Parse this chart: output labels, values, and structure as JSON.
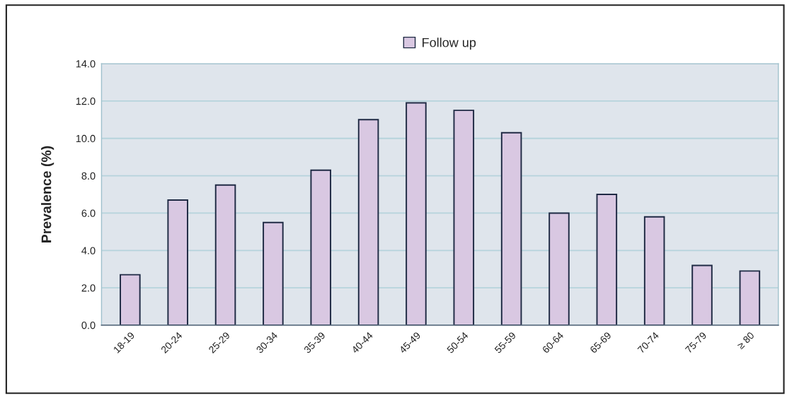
{
  "chart_data": {
    "type": "bar",
    "ylabel": "Prevalence (%)",
    "categories": [
      "18-19",
      "20-24",
      "25-29",
      "30-34",
      "35-39",
      "40-44",
      "45-49",
      "50-54",
      "55-59",
      "60-64",
      "65-69",
      "70-74",
      "75-79",
      "≥ 80"
    ],
    "series": [
      {
        "name": "Follow up",
        "color": "#d9c8e2",
        "values": [
          2.7,
          6.7,
          7.5,
          5.5,
          8.3,
          11.0,
          11.9,
          11.5,
          10.3,
          6.0,
          7.0,
          5.8,
          3.2,
          2.9
        ]
      }
    ],
    "ylim": [
      0,
      14
    ],
    "yticks": [
      {
        "value": 0,
        "label": "0.0"
      },
      {
        "value": 2,
        "label": "2.0"
      },
      {
        "value": 4,
        "label": "4.0"
      },
      {
        "value": 6,
        "label": "6.0"
      },
      {
        "value": 8,
        "label": "8.0"
      },
      {
        "value": 10,
        "label": "10.0"
      },
      {
        "value": 12,
        "label": "12.0"
      },
      {
        "value": 14,
        "label": "14.0"
      }
    ],
    "grid": "y",
    "legend": "top"
  }
}
